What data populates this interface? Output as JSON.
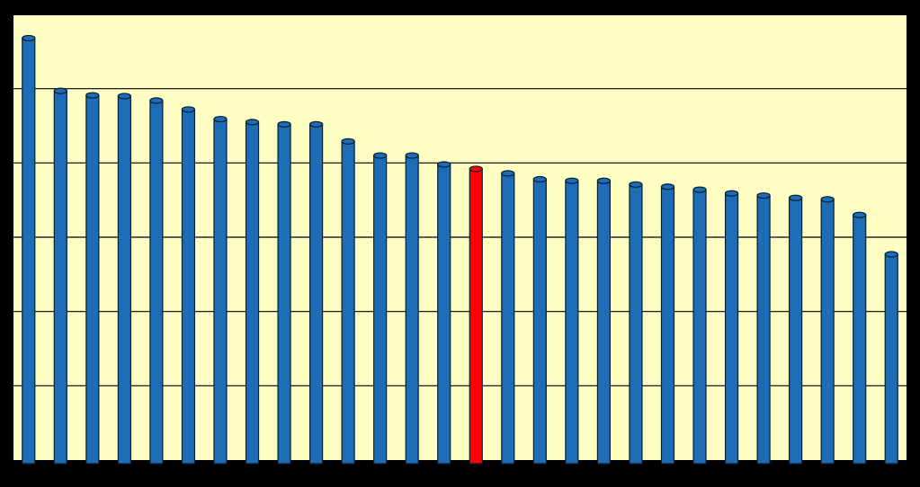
{
  "chart_data": {
    "type": "bar",
    "categories": [
      null,
      null,
      null,
      null,
      null,
      null,
      null,
      null,
      null,
      null,
      null,
      null,
      null,
      null,
      null,
      null,
      null,
      null,
      null,
      null,
      null,
      null,
      null,
      null,
      null,
      null,
      null,
      null
    ],
    "values": [
      5.68,
      4.97,
      4.91,
      4.9,
      4.84,
      4.72,
      4.59,
      4.55,
      4.52,
      4.52,
      4.29,
      4.1,
      4.1,
      3.98,
      3.92,
      3.86,
      3.78,
      3.76,
      3.76,
      3.71,
      3.68,
      3.64,
      3.59,
      3.56,
      3.53,
      3.51,
      3.3,
      2.77
    ],
    "colors": [
      "#1c6db5",
      "#1c6db5",
      "#1c6db5",
      "#1c6db5",
      "#1c6db5",
      "#1c6db5",
      "#1c6db5",
      "#1c6db5",
      "#1c6db5",
      "#1c6db5",
      "#1c6db5",
      "#1c6db5",
      "#1c6db5",
      "#1c6db5",
      "#ff0000",
      "#1c6db5",
      "#1c6db5",
      "#1c6db5",
      "#1c6db5",
      "#1c6db5",
      "#1c6db5",
      "#1c6db5",
      "#1c6db5",
      "#1c6db5",
      "#1c6db5",
      "#1c6db5",
      "#1c6db5",
      "#1c6db5"
    ],
    "ylim": [
      0,
      6
    ],
    "gridlines": [
      1,
      2,
      3,
      4,
      5
    ],
    "grid": true
  }
}
